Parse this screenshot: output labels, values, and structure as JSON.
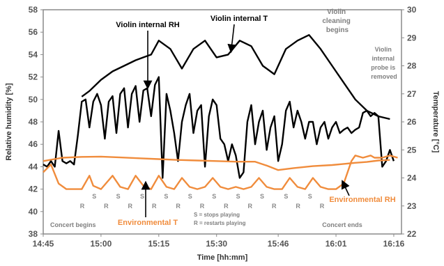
{
  "chart_data": {
    "type": "line",
    "xlabel": "Time [hh:mm]",
    "ylabel_left": "Relative humidity [%]",
    "ylabel_right": "Temperature [°C]",
    "xlim": [
      "14:45",
      "16:18"
    ],
    "x_ticks": [
      "14:45",
      "15:00",
      "15:15",
      "15:30",
      "15:46",
      "16:01",
      "16:16"
    ],
    "ylim_left": [
      38,
      58
    ],
    "ylim_right": [
      22,
      30
    ],
    "y_ticks_left": [
      "38",
      "40",
      "42",
      "44",
      "46",
      "48",
      "50",
      "52",
      "54",
      "56",
      "58"
    ],
    "y_ticks_right": [
      "22",
      "23",
      "24",
      "25",
      "26",
      "27",
      "28",
      "29",
      "30"
    ],
    "grid": false,
    "series": [
      {
        "name": "Violin internal RH",
        "axis": "left",
        "color": "#000000",
        "x": [
          "14:45",
          "14:46",
          "14:47",
          "14:48",
          "14:49",
          "14:50",
          "14:51",
          "14:52",
          "14:53",
          "14:54",
          "14:55",
          "14:56",
          "14:57",
          "14:58",
          "14:59",
          "15:00",
          "15:01",
          "15:02",
          "15:03",
          "15:04",
          "15:05",
          "15:06",
          "15:07",
          "15:08",
          "15:09",
          "15:10",
          "15:11",
          "15:12",
          "15:13",
          "15:14",
          "15:15",
          "15:16",
          "15:17",
          "15:18",
          "15:19",
          "15:20",
          "15:21",
          "15:22",
          "15:23",
          "15:24",
          "15:25",
          "15:26",
          "15:27",
          "15:28",
          "15:29",
          "15:30",
          "15:31",
          "15:32",
          "15:33",
          "15:34",
          "15:35",
          "15:36",
          "15:37",
          "15:38",
          "15:39",
          "15:40",
          "15:41",
          "15:42",
          "15:43",
          "15:44",
          "15:45",
          "15:46",
          "15:47",
          "15:48",
          "15:49",
          "15:50",
          "15:51",
          "15:52",
          "15:53",
          "15:54",
          "15:55",
          "15:56",
          "15:57",
          "15:58",
          "15:59",
          "16:00",
          "16:01",
          "16:02",
          "16:03",
          "16:04",
          "16:05",
          "16:06",
          "16:07",
          "16:08",
          "16:09",
          "16:10",
          "16:11",
          "16:12",
          "16:13",
          "16:14",
          "16:15",
          "16:16"
        ],
        "values": [
          44.2,
          44.0,
          44.5,
          44.0,
          47.2,
          44.5,
          44.3,
          44.5,
          44.2,
          46.8,
          49.8,
          50.0,
          47.5,
          49.8,
          50.5,
          49.5,
          46.5,
          49.8,
          50.3,
          47.0,
          50.5,
          51.0,
          47.5,
          50.5,
          51.2,
          48.0,
          50.8,
          51.0,
          48.5,
          51.3,
          52.0,
          43.0,
          50.5,
          49.0,
          47.0,
          44.5,
          48.0,
          49.5,
          50.5,
          47.0,
          49.0,
          49.5,
          44.0,
          48.5,
          50.0,
          49.5,
          46.5,
          46.0,
          44.5,
          46.0,
          45.0,
          43.0,
          43.5,
          48.0,
          49.5,
          46.0,
          48.0,
          49.0,
          45.5,
          47.5,
          48.5,
          44.5,
          46.0,
          49.0,
          49.8,
          47.5,
          49.0,
          48.0,
          46.5,
          48.0,
          48.0,
          46.0,
          47.5,
          48.0,
          46.5,
          47.5,
          48.0,
          47.0,
          47.3,
          47.5,
          47.0,
          47.3,
          47.5,
          48.8,
          49.0,
          48.5,
          48.8,
          48.5,
          44.0,
          44.5,
          45.5,
          44.5
        ]
      },
      {
        "name": "Violin internal T",
        "axis": "right",
        "color": "#000000",
        "x": [
          "14:55",
          "14:57",
          "15:00",
          "15:03",
          "15:06",
          "15:09",
          "15:11",
          "15:13",
          "15:15",
          "15:18",
          "15:21",
          "15:24",
          "15:27",
          "15:30",
          "15:33",
          "15:36",
          "15:39",
          "15:42",
          "15:45",
          "15:48",
          "15:51",
          "15:54",
          "15:57",
          "16:00",
          "16:03",
          "16:06",
          "16:09",
          "16:12",
          "16:15"
        ],
        "values": [
          26.9,
          27.1,
          27.5,
          27.8,
          28.0,
          28.2,
          28.3,
          28.4,
          28.9,
          28.6,
          27.9,
          28.6,
          28.9,
          28.3,
          28.4,
          28.9,
          28.7,
          28.0,
          27.7,
          28.6,
          28.9,
          29.1,
          28.6,
          28.0,
          27.4,
          26.8,
          26.4,
          26.2,
          26.1
        ]
      },
      {
        "name": "Environmental RH",
        "axis": "left",
        "color": "#F08C3C",
        "x": [
          "14:45",
          "14:47",
          "14:49",
          "14:51",
          "14:55",
          "14:57",
          "14:58",
          "15:00",
          "15:03",
          "15:05",
          "15:07",
          "15:09",
          "15:11",
          "15:13",
          "15:15",
          "15:17",
          "15:19",
          "15:21",
          "15:23",
          "15:25",
          "15:27",
          "15:29",
          "15:31",
          "15:33",
          "15:35",
          "15:37",
          "15:39",
          "15:41",
          "15:43",
          "15:45",
          "15:47",
          "15:49",
          "15:51",
          "15:53",
          "15:55",
          "15:57",
          "15:59",
          "16:01",
          "16:03",
          "16:05",
          "16:06",
          "16:08",
          "16:10",
          "16:11",
          "16:13",
          "16:15",
          "16:17"
        ],
        "values": [
          43.5,
          44.2,
          42.5,
          42.0,
          42.0,
          43.2,
          42.3,
          42.0,
          43.2,
          42.2,
          42.0,
          43.2,
          42.3,
          42.0,
          43.2,
          42.2,
          42.0,
          43.0,
          42.2,
          42.0,
          42.2,
          43.0,
          42.2,
          42.0,
          42.2,
          42.0,
          42.2,
          43.0,
          42.2,
          42.0,
          42.0,
          43.0,
          42.2,
          42.0,
          43.0,
          42.2,
          42.0,
          42.0,
          42.5,
          44.5,
          45.0,
          44.8,
          45.0,
          44.8,
          44.8,
          45.0,
          44.8
        ]
      },
      {
        "name": "Environmental T",
        "axis": "right",
        "color": "#F08C3C",
        "x": [
          "14:45",
          "14:50",
          "14:55",
          "15:00",
          "15:05",
          "15:10",
          "15:15",
          "15:20",
          "15:25",
          "15:30",
          "15:35",
          "15:40",
          "15:43",
          "15:46",
          "15:50",
          "15:55",
          "16:00",
          "16:03",
          "16:06",
          "16:09",
          "16:12",
          "16:15"
        ],
        "values": [
          24.6,
          24.72,
          24.75,
          24.76,
          24.73,
          24.7,
          24.67,
          24.64,
          24.62,
          24.6,
          24.58,
          24.58,
          24.44,
          24.28,
          24.35,
          24.42,
          24.46,
          24.5,
          24.54,
          24.57,
          24.62,
          24.64
        ]
      }
    ],
    "annotations": [
      {
        "text": "Violin internal RH",
        "color": "#000000"
      },
      {
        "text": "Violin internal T",
        "color": "#000000"
      },
      {
        "text": "Violin cleaning begins",
        "color": "#7F7F7F"
      },
      {
        "text": "Violin internal probe is removed",
        "color": "#7F7F7F"
      },
      {
        "text": "Concert begins",
        "color": "#7F7F7F"
      },
      {
        "text": "Concert ends",
        "color": "#7F7F7F"
      },
      {
        "text": "Environmental T",
        "color": "#F08C3C"
      },
      {
        "text": "Environmental RH",
        "color": "#F08C3C"
      },
      {
        "text": "S = stops playing",
        "color": "#7F7F7F"
      },
      {
        "text": "R = restarts playing",
        "color": "#7F7F7F"
      }
    ],
    "event_markers": [
      "R",
      "S",
      "R",
      "S",
      "R",
      "S",
      "R",
      "S",
      "R",
      "S",
      "R",
      "S",
      "R",
      "S",
      "R",
      "S",
      "R",
      "S",
      "R",
      "S",
      "R"
    ]
  }
}
